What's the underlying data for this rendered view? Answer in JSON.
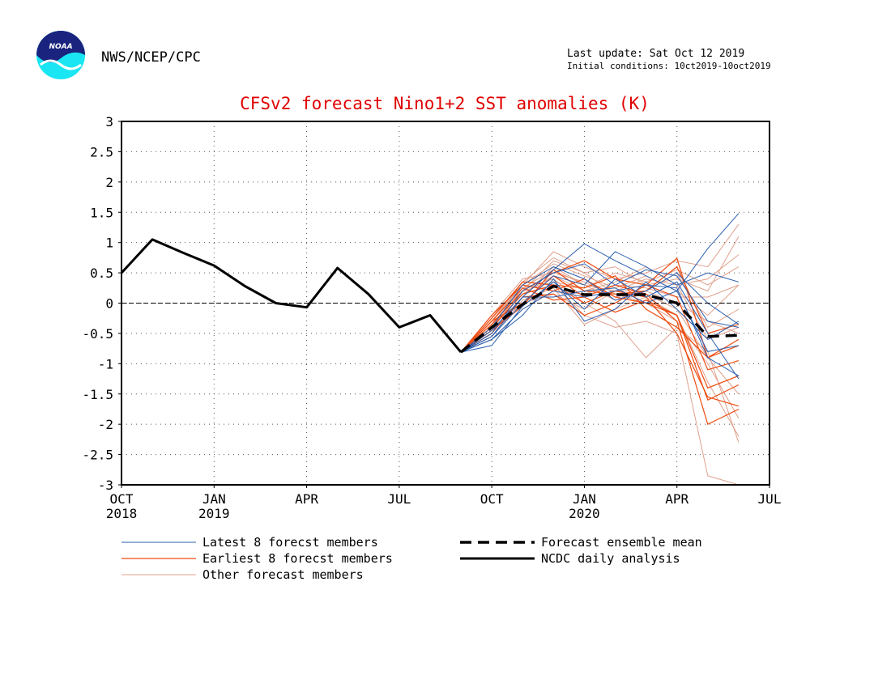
{
  "header": {
    "org": "NWS/NCEP/CPC",
    "logo_text": "NOAA",
    "last_update": "Last update: Sat Oct 12 2019",
    "initial_conditions": "Initial conditions: 10ct2019-10oct2019"
  },
  "colors": {
    "title": "#e00000",
    "latest": "#2a5fb0",
    "earliest": "#ee4b10",
    "other": "#e0a08c",
    "analysis": "#000000",
    "logo_blue": "#1a237e",
    "logo_cyan": "#19e6f2"
  },
  "chart_data": {
    "type": "line",
    "title": "CFSv2 forecast Nino1+2 SST anomalies (K)",
    "ylim": [
      -3,
      3
    ],
    "yticks": [
      3,
      2.5,
      2,
      1.5,
      1,
      0.5,
      0,
      -0.5,
      -1,
      -1.5,
      -2,
      -2.5,
      -3
    ],
    "xlim": [
      0,
      21
    ],
    "xticks": [
      {
        "x": 0,
        "label": "OCT",
        "sub": "2018"
      },
      {
        "x": 3,
        "label": "JAN",
        "sub": "2019"
      },
      {
        "x": 6,
        "label": "APR",
        "sub": ""
      },
      {
        "x": 9,
        "label": "JUL",
        "sub": ""
      },
      {
        "x": 12,
        "label": "OCT",
        "sub": ""
      },
      {
        "x": 15,
        "label": "JAN",
        "sub": "2020"
      },
      {
        "x": 18,
        "label": "APR",
        "sub": ""
      },
      {
        "x": 21,
        "label": "JUL",
        "sub": ""
      }
    ],
    "grid": true,
    "legend": [
      {
        "label": "Latest 8 forecst members",
        "style": "latest"
      },
      {
        "label": "Earliest 8 forecst members",
        "style": "earliest"
      },
      {
        "label": "Other forecast members",
        "style": "other"
      },
      {
        "label": "Forecast ensemble mean",
        "style": "mean"
      },
      {
        "label": "NCDC daily analysis",
        "style": "analysis"
      }
    ],
    "analysis": {
      "x": [
        0,
        1,
        2,
        3,
        4,
        5,
        6,
        7,
        8,
        9,
        10,
        11
      ],
      "y": [
        0.5,
        1.05,
        0.83,
        0.62,
        0.28,
        0.0,
        -0.07,
        0.58,
        0.15,
        -0.4,
        -0.2,
        -0.81
      ]
    },
    "ensemble_mean": {
      "x": [
        11,
        12,
        13,
        14,
        15,
        16,
        17,
        18,
        19,
        20
      ],
      "y": [
        -0.81,
        -0.4,
        -0.02,
        0.28,
        0.14,
        0.14,
        0.14,
        0.0,
        -0.55,
        -0.53
      ]
    },
    "members_x": [
      11,
      12,
      13,
      14,
      15,
      16,
      17,
      18,
      19,
      20
    ],
    "latest_members": [
      [
        -0.81,
        -0.45,
        0.1,
        0.55,
        0.98,
        0.7,
        0.45,
        0.2,
        0.9,
        1.48
      ],
      [
        -0.81,
        -0.55,
        0.0,
        0.45,
        0.3,
        0.85,
        0.6,
        0.3,
        0.5,
        0.35
      ],
      [
        -0.81,
        -0.5,
        0.2,
        0.5,
        0.65,
        0.3,
        0.55,
        0.45,
        -0.3,
        -0.4
      ],
      [
        -0.81,
        -0.6,
        -0.1,
        0.2,
        0.1,
        0.2,
        0.3,
        0.25,
        -0.9,
        -1.2
      ],
      [
        -0.81,
        -0.7,
        -0.05,
        0.35,
        -0.1,
        0.4,
        0.1,
        0.35,
        -0.5,
        -1.25
      ],
      [
        -0.81,
        -0.4,
        0.3,
        0.6,
        0.4,
        0.05,
        0.2,
        0.5,
        0.0,
        -0.35
      ],
      [
        -0.81,
        -0.55,
        0.1,
        0.1,
        0.2,
        0.25,
        0.0,
        0.2,
        -0.8,
        -0.7
      ],
      [
        -0.81,
        -0.6,
        -0.2,
        0.4,
        -0.3,
        -0.1,
        0.35,
        -0.1,
        -0.6,
        -0.3
      ]
    ],
    "earliest_members": [
      [
        -0.81,
        -0.35,
        0.2,
        0.5,
        0.7,
        0.4,
        0.3,
        0.74,
        -0.9,
        -0.6
      ],
      [
        -0.81,
        -0.4,
        0.15,
        0.3,
        0.0,
        0.2,
        0.1,
        -0.5,
        -1.55,
        -1.7
      ],
      [
        -0.81,
        -0.2,
        0.3,
        0.2,
        0.4,
        0.1,
        0.0,
        -0.2,
        -1.6,
        -1.35
      ],
      [
        -0.81,
        -0.3,
        0.0,
        0.45,
        0.1,
        0.3,
        0.15,
        -0.3,
        -2.0,
        -1.75
      ],
      [
        -0.81,
        -0.5,
        0.1,
        0.15,
        -0.2,
        0.0,
        0.3,
        0.1,
        -1.1,
        -0.95
      ],
      [
        -0.81,
        -0.25,
        0.35,
        0.3,
        0.25,
        0.45,
        -0.1,
        -0.4,
        -0.9,
        -0.7
      ],
      [
        -0.81,
        -0.45,
        -0.05,
        0.55,
        0.2,
        0.15,
        0.2,
        0.6,
        -0.5,
        -0.35
      ],
      [
        -0.81,
        -0.3,
        0.25,
        0.05,
        0.1,
        -0.15,
        0.05,
        -0.2,
        -1.4,
        -1.2
      ]
    ],
    "other_members": [
      [
        -0.81,
        -0.3,
        0.3,
        0.85,
        0.6,
        0.4,
        0.5,
        0.7,
        0.6,
        1.3
      ],
      [
        -0.81,
        -0.4,
        0.2,
        0.7,
        0.5,
        0.6,
        0.3,
        0.4,
        0.2,
        1.1
      ],
      [
        -0.81,
        -0.5,
        0.1,
        0.6,
        0.3,
        0.2,
        0.4,
        0.3,
        0.4,
        0.8
      ],
      [
        -0.81,
        -0.35,
        0.25,
        0.4,
        0.0,
        -0.3,
        -0.9,
        -0.4,
        -0.8,
        -2.3
      ],
      [
        -0.81,
        -0.45,
        0.0,
        0.3,
        -0.2,
        -0.4,
        -0.3,
        -0.5,
        -2.85,
        -3.0
      ],
      [
        -0.81,
        -0.2,
        0.4,
        0.5,
        0.35,
        0.1,
        0.2,
        0.5,
        -0.4,
        -0.1
      ],
      [
        -0.81,
        -0.6,
        -0.1,
        0.2,
        0.15,
        0.3,
        0.25,
        0.1,
        0.1,
        0.3
      ],
      [
        -0.81,
        -0.25,
        0.3,
        0.65,
        0.45,
        0.25,
        0.45,
        0.2,
        -0.2,
        0.3
      ],
      [
        -0.81,
        -0.55,
        0.05,
        0.25,
        -0.35,
        -0.1,
        0.1,
        -0.2,
        -1.3,
        -2.2
      ],
      [
        -0.81,
        -0.4,
        0.15,
        0.45,
        0.2,
        0.35,
        0.6,
        0.3,
        -0.6,
        -0.4
      ],
      [
        -0.81,
        -0.3,
        0.35,
        0.75,
        0.5,
        0.15,
        0.0,
        -0.3,
        -1.0,
        -1.9
      ],
      [
        -0.81,
        -0.5,
        0.2,
        0.35,
        0.25,
        0.5,
        0.35,
        0.55,
        0.3,
        0.6
      ],
      [
        -0.81,
        -0.35,
        0.0,
        0.15,
        -0.1,
        0.2,
        0.2,
        0.0,
        -0.3,
        -0.5
      ],
      [
        -0.81,
        -0.45,
        0.25,
        0.55,
        0.3,
        0.05,
        0.15,
        -0.1,
        -0.9,
        -1.5
      ]
    ]
  }
}
